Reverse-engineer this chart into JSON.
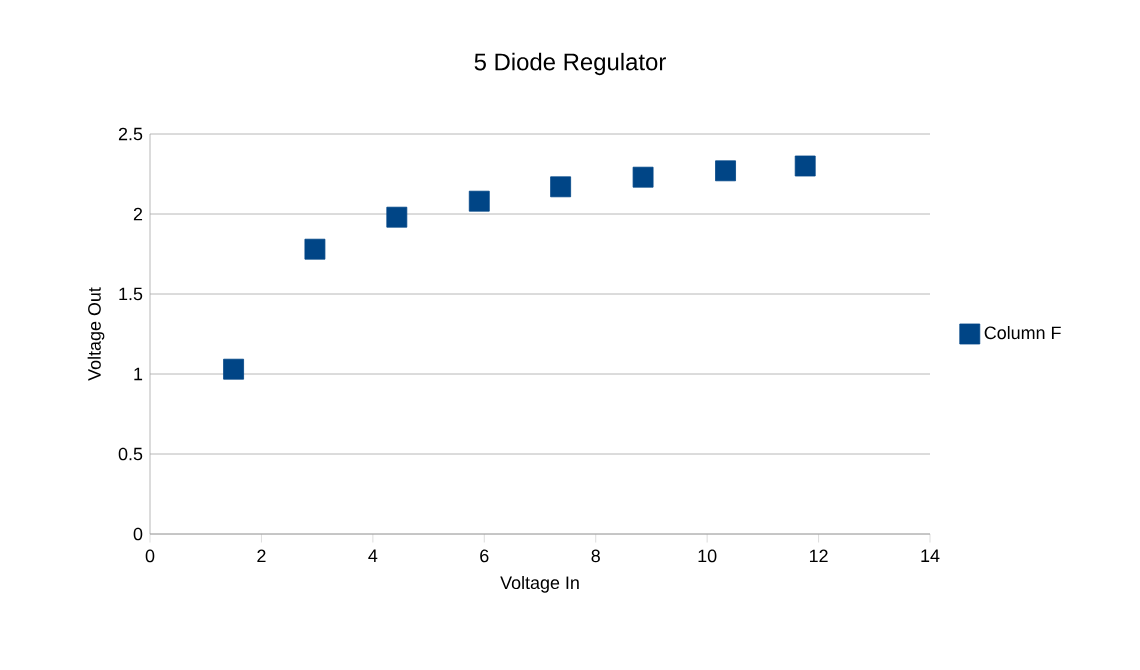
{
  "chart_data": {
    "type": "scatter",
    "title": "5 Diode Regulator",
    "xlabel": "Voltage In",
    "ylabel": "Voltage Out",
    "x": [
      1.5,
      2.96,
      4.43,
      5.91,
      7.37,
      8.85,
      10.33,
      11.76
    ],
    "series": [
      {
        "name": "Column F",
        "color": "#004586",
        "values": [
          1.03,
          1.78,
          1.98,
          2.08,
          2.17,
          2.23,
          2.27,
          2.3
        ]
      }
    ],
    "xlim": [
      0,
      14
    ],
    "ylim": [
      0,
      2.5
    ],
    "xticks": [
      0,
      2,
      4,
      6,
      8,
      10,
      12,
      14
    ],
    "yticks": [
      0,
      0.5,
      1,
      1.5,
      2,
      2.5
    ],
    "grid": "y",
    "legend": "right",
    "marker": "square"
  }
}
